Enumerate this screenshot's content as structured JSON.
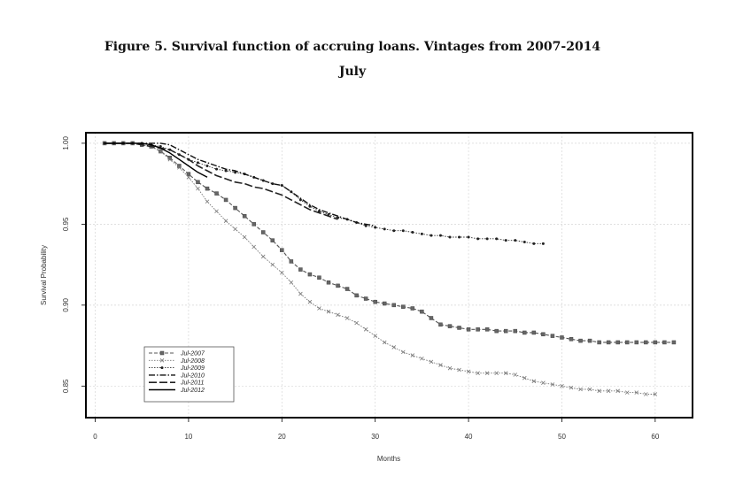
{
  "figure": {
    "title_line1": "Figure 5. Survival function of accruing loans. Vintages from 2007-2014",
    "title_line2": "July"
  },
  "chart_data": {
    "type": "line",
    "title": "Figure 5. Survival function of accruing loans. Vintages from 2007-2014 July",
    "xlabel": "Months",
    "ylabel": "Survival Probability",
    "xlim": [
      -1,
      64
    ],
    "ylim": [
      0.8305,
      1.0065
    ],
    "xticks": [
      0,
      10,
      20,
      30,
      40,
      50,
      60
    ],
    "yticks": [
      0.85,
      0.9,
      0.95,
      1.0
    ],
    "ytick_labels": [
      "0.85",
      "0.90",
      "0.95",
      "1.00"
    ],
    "grid": true,
    "legend_position": "bottom-left",
    "series": [
      {
        "name": "Jul-2007",
        "style": "dash-square",
        "x": [
          1,
          2,
          3,
          4,
          5,
          6,
          7,
          8,
          9,
          10,
          11,
          12,
          13,
          14,
          15,
          16,
          17,
          18,
          19,
          20,
          21,
          22,
          23,
          24,
          25,
          26,
          27,
          28,
          29,
          30,
          31,
          32,
          33,
          34,
          35,
          36,
          37,
          38,
          39,
          40,
          41,
          42,
          43,
          44,
          45,
          46,
          47,
          48,
          49,
          50,
          51,
          52,
          53,
          54,
          55,
          56,
          57,
          58,
          59,
          60,
          61,
          62
        ],
        "values": [
          1.0,
          1.0,
          1.0,
          1.0,
          0.999,
          0.998,
          0.995,
          0.991,
          0.986,
          0.981,
          0.976,
          0.972,
          0.969,
          0.965,
          0.96,
          0.955,
          0.95,
          0.945,
          0.94,
          0.934,
          0.927,
          0.922,
          0.919,
          0.917,
          0.914,
          0.912,
          0.91,
          0.906,
          0.904,
          0.902,
          0.901,
          0.9,
          0.899,
          0.898,
          0.896,
          0.892,
          0.888,
          0.887,
          0.886,
          0.885,
          0.885,
          0.885,
          0.884,
          0.884,
          0.884,
          0.883,
          0.883,
          0.882,
          0.881,
          0.88,
          0.879,
          0.878,
          0.878,
          0.877,
          0.877,
          0.877,
          0.877,
          0.877,
          0.877,
          0.877,
          0.877,
          0.877
        ]
      },
      {
        "name": "Jul-2008",
        "style": "dot-x",
        "x": [
          1,
          2,
          3,
          4,
          5,
          6,
          7,
          8,
          9,
          10,
          11,
          12,
          13,
          14,
          15,
          16,
          17,
          18,
          19,
          20,
          21,
          22,
          23,
          24,
          25,
          26,
          27,
          28,
          29,
          30,
          31,
          32,
          33,
          34,
          35,
          36,
          37,
          38,
          39,
          40,
          41,
          42,
          43,
          44,
          45,
          46,
          47,
          48,
          49,
          50,
          51,
          52,
          53,
          54,
          55,
          56,
          57,
          58,
          59,
          60
        ],
        "values": [
          1.0,
          1.0,
          1.0,
          1.0,
          0.999,
          0.998,
          0.995,
          0.99,
          0.985,
          0.979,
          0.972,
          0.964,
          0.958,
          0.952,
          0.947,
          0.942,
          0.936,
          0.93,
          0.925,
          0.92,
          0.914,
          0.907,
          0.902,
          0.898,
          0.896,
          0.894,
          0.892,
          0.889,
          0.885,
          0.881,
          0.877,
          0.874,
          0.871,
          0.869,
          0.867,
          0.865,
          0.863,
          0.861,
          0.86,
          0.859,
          0.858,
          0.858,
          0.858,
          0.858,
          0.857,
          0.855,
          0.853,
          0.852,
          0.851,
          0.85,
          0.849,
          0.848,
          0.848,
          0.847,
          0.847,
          0.847,
          0.846,
          0.846,
          0.845,
          0.845
        ]
      },
      {
        "name": "Jul-2009",
        "style": "dot-circle",
        "x": [
          1,
          2,
          3,
          4,
          5,
          6,
          7,
          8,
          9,
          10,
          11,
          12,
          13,
          14,
          15,
          16,
          17,
          18,
          19,
          20,
          21,
          22,
          23,
          24,
          25,
          26,
          27,
          28,
          29,
          30,
          31,
          32,
          33,
          34,
          35,
          36,
          37,
          38,
          39,
          40,
          41,
          42,
          43,
          44,
          45,
          46,
          47,
          48
        ],
        "values": [
          1.0,
          1.0,
          1.0,
          1.0,
          1.0,
          0.999,
          0.998,
          0.996,
          0.993,
          0.99,
          0.988,
          0.986,
          0.984,
          0.983,
          0.982,
          0.981,
          0.979,
          0.977,
          0.975,
          0.974,
          0.97,
          0.965,
          0.961,
          0.958,
          0.956,
          0.954,
          0.953,
          0.951,
          0.949,
          0.948,
          0.947,
          0.946,
          0.946,
          0.945,
          0.944,
          0.943,
          0.943,
          0.942,
          0.942,
          0.942,
          0.941,
          0.941,
          0.941,
          0.94,
          0.94,
          0.939,
          0.938,
          0.938
        ]
      },
      {
        "name": "Jul-2010",
        "style": "dashdot",
        "x": [
          1,
          2,
          3,
          4,
          5,
          6,
          7,
          8,
          9,
          10,
          11,
          12,
          13,
          14,
          15,
          16,
          17,
          18,
          19,
          20,
          21,
          22,
          23,
          24,
          25,
          26,
          27,
          28,
          29,
          30
        ],
        "values": [
          1.0,
          1.0,
          1.0,
          1.0,
          1.0,
          1.0,
          1.0,
          0.999,
          0.996,
          0.993,
          0.99,
          0.988,
          0.986,
          0.984,
          0.983,
          0.981,
          0.979,
          0.977,
          0.975,
          0.974,
          0.97,
          0.966,
          0.962,
          0.959,
          0.957,
          0.955,
          0.953,
          0.951,
          0.95,
          0.949
        ]
      },
      {
        "name": "Jul-2011",
        "style": "longdash",
        "x": [
          1,
          2,
          3,
          4,
          5,
          6,
          7,
          8,
          9,
          10,
          11,
          12,
          13,
          14,
          15,
          16,
          17,
          18,
          19,
          20,
          21,
          22,
          23,
          24,
          25,
          26
        ],
        "values": [
          1.0,
          1.0,
          1.0,
          1.0,
          0.999,
          0.998,
          0.997,
          0.996,
          0.993,
          0.99,
          0.986,
          0.983,
          0.98,
          0.978,
          0.976,
          0.975,
          0.973,
          0.972,
          0.97,
          0.968,
          0.965,
          0.962,
          0.959,
          0.957,
          0.955,
          0.953
        ]
      },
      {
        "name": "Jul-2012",
        "style": "solid",
        "x": [
          1,
          2,
          3,
          4,
          5,
          6,
          7,
          8,
          9,
          10,
          11,
          12
        ],
        "values": [
          1.0,
          1.0,
          1.0,
          1.0,
          1.0,
          0.999,
          0.997,
          0.994,
          0.99,
          0.986,
          0.982,
          0.979
        ]
      }
    ]
  }
}
